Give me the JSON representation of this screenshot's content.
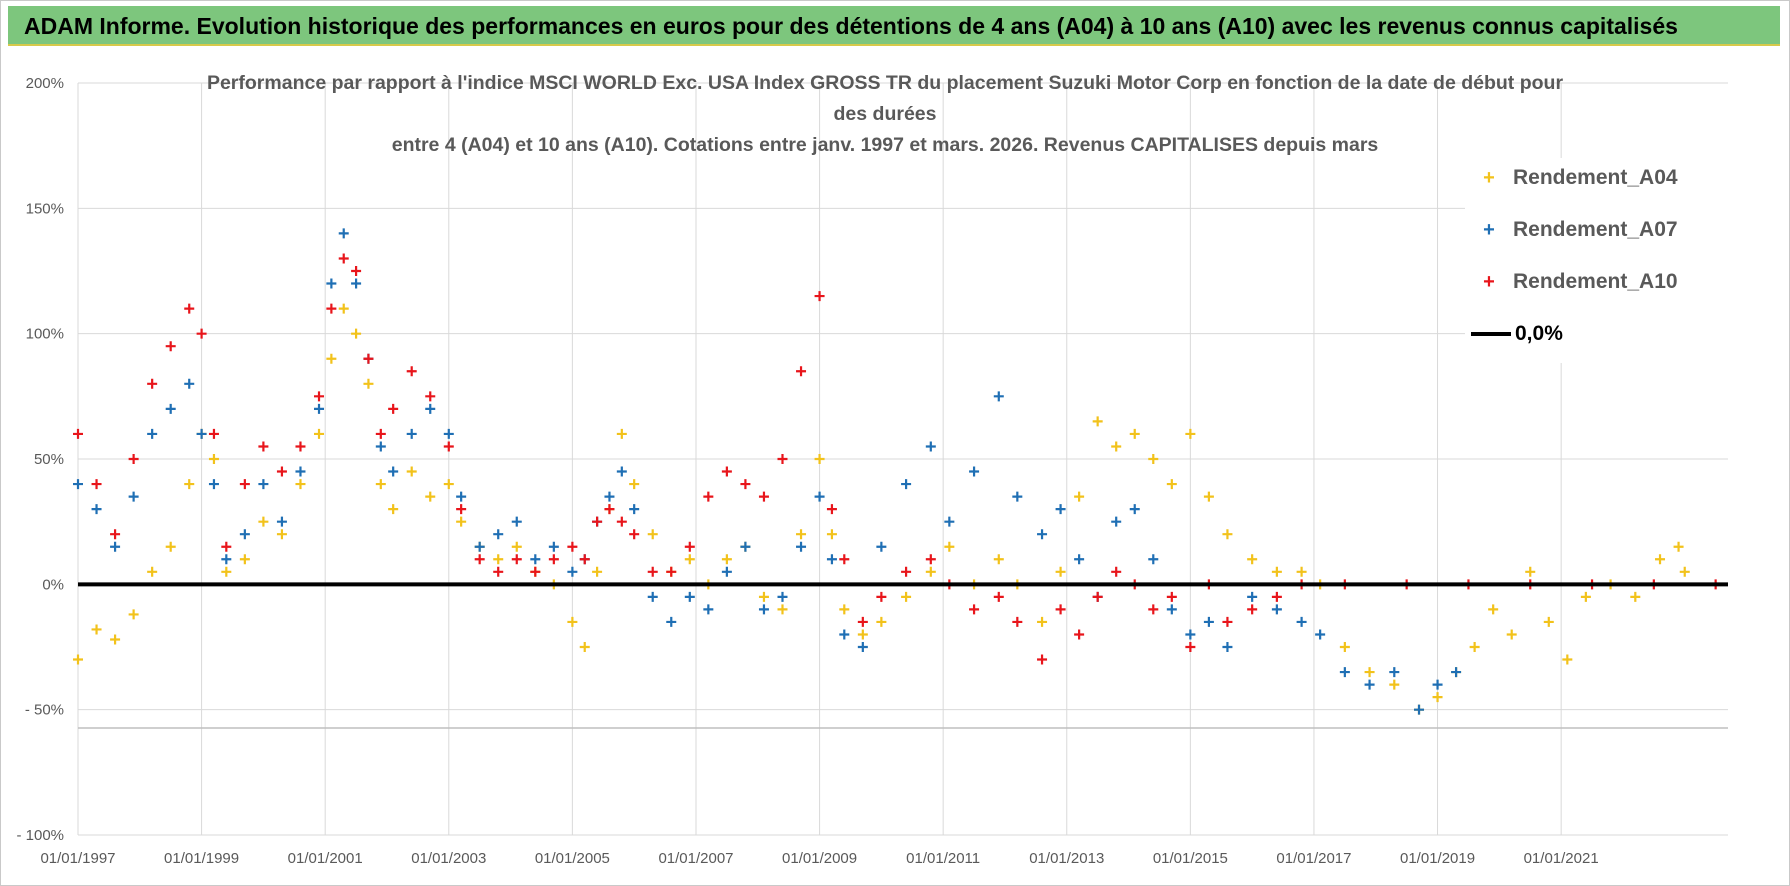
{
  "header": {
    "title": "ADAM Informe. Evolution historique des performances en euros pour des détentions de 4 ans (A04) à 10 ans (A10) avec les revenus connus capitalisés"
  },
  "chart_data": {
    "type": "scatter",
    "title_lines": [
      "Performance par rapport à l'indice MSCI WORLD Exc. USA Index GROSS TR  du placement Suzuki Motor Corp en fonction de la date de début pour",
      "des durées",
      "entre 4 (A04) et 10 ans (A10).  Cotations entre janv. 1997 et mars. 2026. Revenus CAPITALISES depuis mars"
    ],
    "xlabel": "",
    "ylabel": "",
    "x_ticks": [
      "01/01/1997",
      "01/01/1999",
      "01/01/2001",
      "01/01/2003",
      "01/01/2005",
      "01/01/2007",
      "01/01/2009",
      "01/01/2011",
      "01/01/2013",
      "01/01/2015",
      "01/01/2017",
      "01/01/2019",
      "01/01/2021"
    ],
    "y_ticks": [
      "200%",
      "150%",
      "100%",
      "50%",
      "0%",
      "- 50%",
      "- 100%"
    ],
    "y_tick_values": [
      200,
      150,
      100,
      50,
      0,
      -50,
      -100
    ],
    "xlim": [
      1997.0,
      2023.7
    ],
    "ylim": [
      -100,
      200
    ],
    "grid": true,
    "legend_position": "right",
    "series": [
      {
        "name": "Rendement_A04",
        "color": "#f2c21b",
        "marker": "+",
        "points": [
          [
            1997.0,
            -30
          ],
          [
            1997.3,
            -18
          ],
          [
            1997.6,
            -22
          ],
          [
            1997.9,
            -12
          ],
          [
            1998.2,
            5
          ],
          [
            1998.5,
            15
          ],
          [
            1998.8,
            40
          ],
          [
            1999.0,
            60
          ],
          [
            1999.2,
            50
          ],
          [
            1999.4,
            5
          ],
          [
            1999.7,
            10
          ],
          [
            2000.0,
            25
          ],
          [
            2000.3,
            20
          ],
          [
            2000.6,
            40
          ],
          [
            2000.9,
            60
          ],
          [
            2001.1,
            90
          ],
          [
            2001.3,
            110
          ],
          [
            2001.5,
            100
          ],
          [
            2001.7,
            80
          ],
          [
            2001.9,
            40
          ],
          [
            2002.1,
            30
          ],
          [
            2002.4,
            45
          ],
          [
            2002.7,
            35
          ],
          [
            2003.0,
            40
          ],
          [
            2003.2,
            25
          ],
          [
            2003.5,
            15
          ],
          [
            2003.8,
            10
          ],
          [
            2004.1,
            15
          ],
          [
            2004.4,
            5
          ],
          [
            2004.7,
            0
          ],
          [
            2005.0,
            -15
          ],
          [
            2005.2,
            -25
          ],
          [
            2005.4,
            5
          ],
          [
            2005.6,
            30
          ],
          [
            2005.8,
            60
          ],
          [
            2006.0,
            40
          ],
          [
            2006.3,
            20
          ],
          [
            2006.6,
            5
          ],
          [
            2006.9,
            10
          ],
          [
            2007.2,
            0
          ],
          [
            2007.5,
            10
          ],
          [
            2007.8,
            15
          ],
          [
            2008.1,
            -5
          ],
          [
            2008.4,
            -10
          ],
          [
            2008.7,
            20
          ],
          [
            2009.0,
            50
          ],
          [
            2009.2,
            20
          ],
          [
            2009.4,
            -10
          ],
          [
            2009.7,
            -20
          ],
          [
            2010.0,
            -15
          ],
          [
            2010.4,
            -5
          ],
          [
            2010.8,
            5
          ],
          [
            2011.1,
            15
          ],
          [
            2011.5,
            0
          ],
          [
            2011.9,
            10
          ],
          [
            2012.2,
            0
          ],
          [
            2012.6,
            -15
          ],
          [
            2012.9,
            5
          ],
          [
            2013.2,
            35
          ],
          [
            2013.5,
            65
          ],
          [
            2013.8,
            55
          ],
          [
            2014.1,
            60
          ],
          [
            2014.4,
            50
          ],
          [
            2014.7,
            40
          ],
          [
            2015.0,
            60
          ],
          [
            2015.3,
            35
          ],
          [
            2015.6,
            20
          ],
          [
            2016.0,
            10
          ],
          [
            2016.4,
            5
          ],
          [
            2016.8,
            5
          ],
          [
            2017.1,
            0
          ],
          [
            2017.5,
            -25
          ],
          [
            2017.9,
            -35
          ],
          [
            2018.3,
            -40
          ],
          [
            2018.7,
            -50
          ],
          [
            2019.0,
            -45
          ],
          [
            2019.3,
            -35
          ],
          [
            2019.6,
            -25
          ],
          [
            2019.9,
            -10
          ],
          [
            2020.2,
            -20
          ],
          [
            2020.5,
            5
          ],
          [
            2020.8,
            -15
          ],
          [
            2021.1,
            -30
          ],
          [
            2021.4,
            -5
          ],
          [
            2021.8,
            0
          ],
          [
            2022.2,
            -5
          ],
          [
            2022.6,
            10
          ],
          [
            2022.9,
            15
          ],
          [
            2023.0,
            5
          ]
        ]
      },
      {
        "name": "Rendement_A07",
        "color": "#1f6fb4",
        "marker": "+",
        "points": [
          [
            1997.0,
            40
          ],
          [
            1997.3,
            30
          ],
          [
            1997.6,
            15
          ],
          [
            1997.9,
            35
          ],
          [
            1998.2,
            60
          ],
          [
            1998.5,
            70
          ],
          [
            1998.8,
            80
          ],
          [
            1999.0,
            60
          ],
          [
            1999.2,
            40
          ],
          [
            1999.4,
            10
          ],
          [
            1999.7,
            20
          ],
          [
            2000.0,
            40
          ],
          [
            2000.3,
            25
          ],
          [
            2000.6,
            45
          ],
          [
            2000.9,
            70
          ],
          [
            2001.1,
            120
          ],
          [
            2001.3,
            140
          ],
          [
            2001.5,
            120
          ],
          [
            2001.7,
            90
          ],
          [
            2001.9,
            55
          ],
          [
            2002.1,
            45
          ],
          [
            2002.4,
            60
          ],
          [
            2002.7,
            70
          ],
          [
            2003.0,
            60
          ],
          [
            2003.2,
            35
          ],
          [
            2003.5,
            15
          ],
          [
            2003.8,
            20
          ],
          [
            2004.1,
            25
          ],
          [
            2004.4,
            10
          ],
          [
            2004.7,
            15
          ],
          [
            2005.0,
            5
          ],
          [
            2005.2,
            10
          ],
          [
            2005.4,
            25
          ],
          [
            2005.6,
            35
          ],
          [
            2005.8,
            45
          ],
          [
            2006.0,
            30
          ],
          [
            2006.3,
            -5
          ],
          [
            2006.6,
            -15
          ],
          [
            2006.9,
            -5
          ],
          [
            2007.2,
            -10
          ],
          [
            2007.5,
            5
          ],
          [
            2007.8,
            15
          ],
          [
            2008.1,
            -10
          ],
          [
            2008.4,
            -5
          ],
          [
            2008.7,
            15
          ],
          [
            2009.0,
            35
          ],
          [
            2009.2,
            10
          ],
          [
            2009.4,
            -20
          ],
          [
            2009.7,
            -25
          ],
          [
            2010.0,
            15
          ],
          [
            2010.4,
            40
          ],
          [
            2010.8,
            55
          ],
          [
            2011.1,
            25
          ],
          [
            2011.5,
            45
          ],
          [
            2011.9,
            75
          ],
          [
            2012.2,
            35
          ],
          [
            2012.6,
            20
          ],
          [
            2012.9,
            30
          ],
          [
            2013.2,
            10
          ],
          [
            2013.5,
            -5
          ],
          [
            2013.8,
            25
          ],
          [
            2014.1,
            30
          ],
          [
            2014.4,
            10
          ],
          [
            2014.7,
            -10
          ],
          [
            2015.0,
            -20
          ],
          [
            2015.3,
            -15
          ],
          [
            2015.6,
            -25
          ],
          [
            2016.0,
            -5
          ],
          [
            2016.4,
            -10
          ],
          [
            2016.8,
            -15
          ],
          [
            2017.1,
            -20
          ],
          [
            2017.5,
            -35
          ],
          [
            2017.9,
            -40
          ],
          [
            2018.3,
            -35
          ],
          [
            2018.7,
            -50
          ],
          [
            2019.0,
            -40
          ],
          [
            2019.3,
            -35
          ]
        ]
      },
      {
        "name": "Rendement_A10",
        "color": "#e8151b",
        "marker": "+",
        "points": [
          [
            1997.0,
            60
          ],
          [
            1997.3,
            40
          ],
          [
            1997.6,
            20
          ],
          [
            1997.9,
            50
          ],
          [
            1998.2,
            80
          ],
          [
            1998.5,
            95
          ],
          [
            1998.8,
            110
          ],
          [
            1999.0,
            100
          ],
          [
            1999.2,
            60
          ],
          [
            1999.4,
            15
          ],
          [
            1999.7,
            40
          ],
          [
            2000.0,
            55
          ],
          [
            2000.3,
            45
          ],
          [
            2000.6,
            55
          ],
          [
            2000.9,
            75
          ],
          [
            2001.1,
            110
          ],
          [
            2001.3,
            130
          ],
          [
            2001.5,
            125
          ],
          [
            2001.7,
            90
          ],
          [
            2001.9,
            60
          ],
          [
            2002.1,
            70
          ],
          [
            2002.4,
            85
          ],
          [
            2002.7,
            75
          ],
          [
            2003.0,
            55
          ],
          [
            2003.2,
            30
          ],
          [
            2003.5,
            10
          ],
          [
            2003.8,
            5
          ],
          [
            2004.1,
            10
          ],
          [
            2004.4,
            5
          ],
          [
            2004.7,
            10
          ],
          [
            2005.0,
            15
          ],
          [
            2005.2,
            10
          ],
          [
            2005.4,
            25
          ],
          [
            2005.6,
            30
          ],
          [
            2005.8,
            25
          ],
          [
            2006.0,
            20
          ],
          [
            2006.3,
            5
          ],
          [
            2006.6,
            5
          ],
          [
            2006.9,
            15
          ],
          [
            2007.2,
            35
          ],
          [
            2007.5,
            45
          ],
          [
            2007.8,
            40
          ],
          [
            2008.1,
            35
          ],
          [
            2008.4,
            50
          ],
          [
            2008.7,
            85
          ],
          [
            2009.0,
            115
          ],
          [
            2009.2,
            30
          ],
          [
            2009.4,
            10
          ],
          [
            2009.7,
            -15
          ],
          [
            2010.0,
            -5
          ],
          [
            2010.4,
            5
          ],
          [
            2010.8,
            10
          ],
          [
            2011.1,
            0
          ],
          [
            2011.5,
            -10
          ],
          [
            2011.9,
            -5
          ],
          [
            2012.2,
            -15
          ],
          [
            2012.6,
            -30
          ],
          [
            2012.9,
            -10
          ],
          [
            2013.2,
            -20
          ],
          [
            2013.5,
            -5
          ],
          [
            2013.8,
            5
          ],
          [
            2014.1,
            0
          ],
          [
            2014.4,
            -10
          ],
          [
            2014.7,
            -5
          ],
          [
            2015.0,
            -25
          ],
          [
            2015.3,
            0
          ],
          [
            2015.6,
            -15
          ],
          [
            2016.0,
            -10
          ],
          [
            2016.4,
            -5
          ],
          [
            2016.8,
            0
          ],
          [
            2017.5,
            0
          ],
          [
            2018.5,
            0
          ],
          [
            2019.5,
            0
          ],
          [
            2020.5,
            0
          ],
          [
            2021.5,
            0
          ],
          [
            2022.5,
            0
          ],
          [
            2023.5,
            0
          ]
        ]
      },
      {
        "name": "0,0%",
        "color": "#000000",
        "marker": "line",
        "points": [
          [
            1997.0,
            0
          ],
          [
            2023.7,
            0
          ]
        ]
      }
    ]
  }
}
